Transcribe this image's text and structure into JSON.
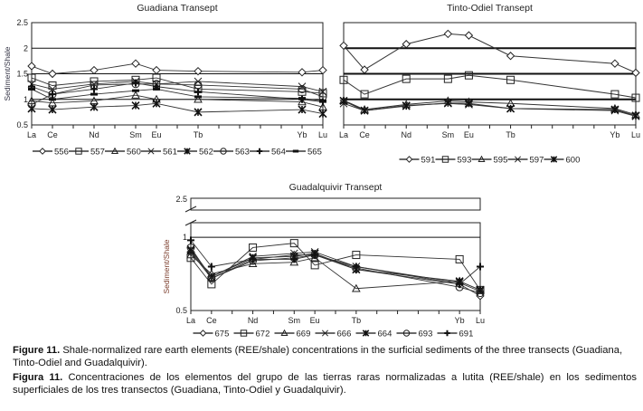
{
  "chart_data": [
    {
      "type": "line",
      "title": "Guadiana Transept",
      "ylabel": "Sediment/Shale",
      "xlabel": "",
      "categories": [
        "La",
        "Ce",
        "Nd",
        "Sm",
        "Eu",
        "Tb",
        "Yb",
        "Lu"
      ],
      "yticks": [
        "0.5",
        "1",
        "1.5",
        "2",
        "2.5"
      ],
      "ylim": [
        0.5,
        2.5
      ],
      "grid": true,
      "legend": "bottom",
      "series": [
        {
          "name": "556",
          "marker": "diamond",
          "values": [
            1.65,
            1.5,
            1.57,
            1.7,
            1.57,
            1.55,
            1.53,
            1.57
          ]
        },
        {
          "name": "557",
          "marker": "square",
          "values": [
            1.42,
            1.27,
            1.35,
            1.38,
            1.42,
            1.2,
            1.15,
            1.12
          ]
        },
        {
          "name": "560",
          "marker": "triangle",
          "values": [
            0.97,
            0.93,
            0.97,
            1.08,
            1.0,
            1.0,
            0.95,
            0.85
          ]
        },
        {
          "name": "561",
          "marker": "x",
          "values": [
            1.3,
            1.2,
            1.3,
            1.35,
            1.3,
            1.35,
            1.25,
            1.15
          ]
        },
        {
          "name": "562",
          "marker": "asterisk",
          "values": [
            0.82,
            0.8,
            0.85,
            0.88,
            0.92,
            0.75,
            0.8,
            0.72
          ]
        },
        {
          "name": "563",
          "marker": "circle",
          "values": [
            0.9,
            1.1,
            1.28,
            1.3,
            1.3,
            1.28,
            1.2,
            1.05
          ]
        },
        {
          "name": "564",
          "marker": "plus",
          "values": [
            1.25,
            1.1,
            1.2,
            1.32,
            1.25,
            1.15,
            1.0,
            0.95
          ]
        },
        {
          "name": "565",
          "marker": "dash",
          "values": [
            1.2,
            1.0,
            1.1,
            1.17,
            1.2,
            1.05,
            1.02,
            0.97
          ]
        }
      ]
    },
    {
      "type": "line",
      "title": "Tinto-Odiel Transept",
      "ylabel": "",
      "categories": [
        "La",
        "Ce",
        "Nd",
        "Sm",
        "Eu",
        "Tb",
        "Yb",
        "Lu"
      ],
      "ylim": [
        0.5,
        2.5
      ],
      "grid": true,
      "legend": "bottom",
      "series": [
        {
          "name": "591",
          "marker": "diamond",
          "values": [
            2.05,
            1.58,
            2.08,
            2.28,
            2.25,
            1.85,
            1.7,
            1.52
          ]
        },
        {
          "name": "593",
          "marker": "square",
          "values": [
            1.38,
            1.1,
            1.4,
            1.4,
            1.47,
            1.38,
            1.1,
            1.03
          ]
        },
        {
          "name": "595",
          "marker": "triangle",
          "values": [
            0.98,
            0.8,
            0.9,
            0.97,
            0.95,
            0.92,
            0.82,
            0.7
          ]
        },
        {
          "name": "597",
          "marker": "x",
          "values": [
            0.92,
            0.78,
            0.88,
            0.92,
            0.9,
            0.82,
            0.78,
            0.67
          ]
        },
        {
          "name": "600",
          "marker": "asterisk",
          "values": [
            0.97,
            0.78,
            0.87,
            0.93,
            0.92,
            0.82,
            0.8,
            0.68
          ]
        }
      ]
    },
    {
      "type": "line",
      "title": "Guadalquivir Transept",
      "ylabel": "Sediment/Shale",
      "categories": [
        "La",
        "Ce",
        "Nd",
        "Sm",
        "Eu",
        "Tb",
        "Yb",
        "Lu"
      ],
      "yticks": [
        "0.5",
        "1",
        "2.5"
      ],
      "ylim": [
        0.5,
        2.5
      ],
      "axis_break": true,
      "grid": true,
      "legend": "bottom",
      "series": [
        {
          "name": "675",
          "marker": "diamond",
          "values": [
            0.9,
            0.72,
            0.85,
            0.88,
            0.88,
            0.78,
            0.68,
            0.6
          ]
        },
        {
          "name": "672",
          "marker": "square",
          "values": [
            0.86,
            0.68,
            0.93,
            0.96,
            0.81,
            0.88,
            0.85,
            0.64
          ]
        },
        {
          "name": "669",
          "marker": "triangle",
          "values": [
            0.88,
            0.75,
            0.82,
            0.83,
            0.86,
            0.65,
            0.7,
            0.64
          ]
        },
        {
          "name": "666",
          "marker": "x",
          "values": [
            0.92,
            0.73,
            0.87,
            0.89,
            0.9,
            0.8,
            0.69,
            0.63
          ]
        },
        {
          "name": "664",
          "marker": "asterisk",
          "values": [
            0.91,
            0.73,
            0.86,
            0.87,
            0.89,
            0.78,
            0.7,
            0.64
          ]
        },
        {
          "name": "693",
          "marker": "circle",
          "values": [
            0.93,
            0.72,
            0.84,
            0.86,
            0.88,
            0.79,
            0.66,
            0.62
          ]
        },
        {
          "name": "691",
          "marker": "plus",
          "values": [
            0.98,
            0.8,
            0.85,
            0.85,
            0.88,
            0.8,
            0.68,
            0.8
          ]
        }
      ]
    }
  ],
  "caption_en": {
    "label": "Figure 11.",
    "text": " Shale-normalized rare earth elements (REE/shale) concentrations in the surficial sediments of the three transects (Guadiana, Tinto-Odiel and Guadalquivir)."
  },
  "caption_es": {
    "label": "Figura 11.",
    "text": " Concentraciones de los elementos del grupo de las tierras raras normalizadas a lutita (REE/shale) en los sedimentos superficiales de los tres transectos (Guadiana, Tinto-Odiel y Guadalquivir)."
  }
}
